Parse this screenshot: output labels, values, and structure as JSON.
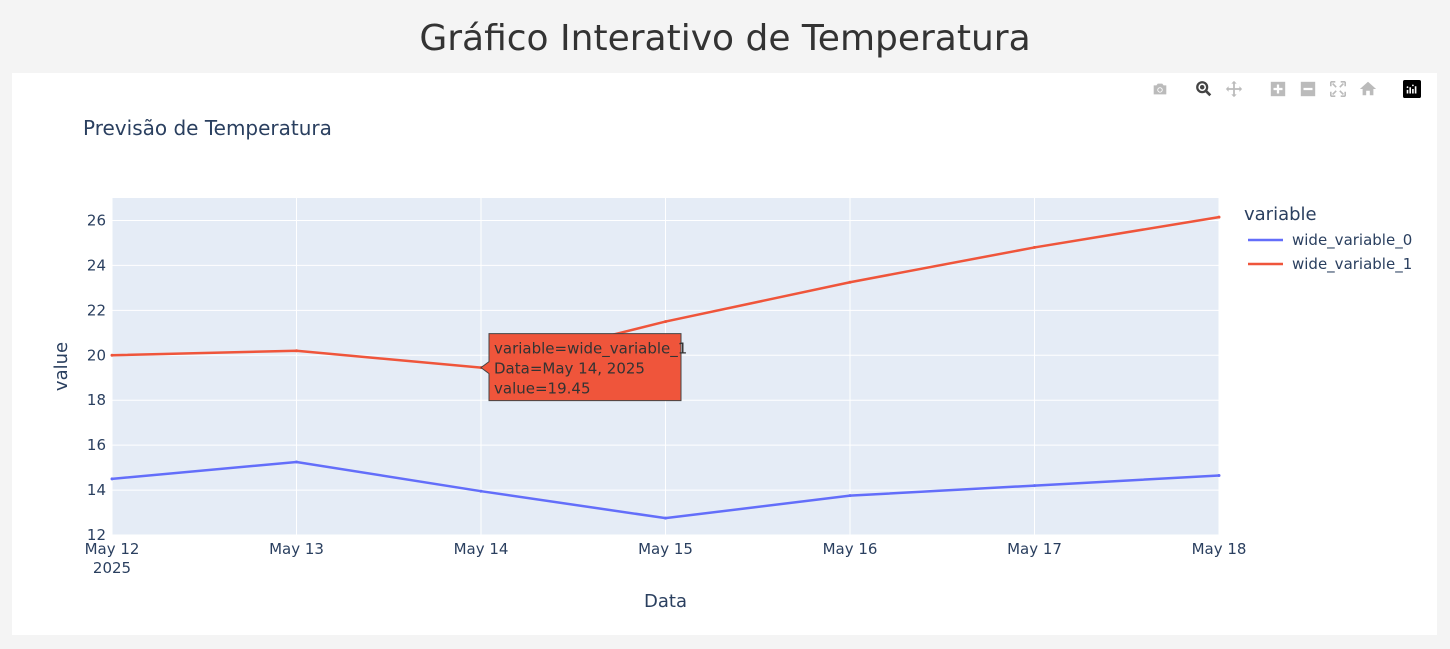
{
  "page": {
    "title": "Gráfico Interativo de Temperatura"
  },
  "modebar": [
    {
      "name": "camera-icon",
      "label": "Download plot as png"
    },
    {
      "name": "zoom-icon",
      "label": "Zoom"
    },
    {
      "name": "pan-icon",
      "label": "Pan"
    },
    {
      "name": "zoom-in-icon",
      "label": "Zoom in"
    },
    {
      "name": "zoom-out-icon",
      "label": "Zoom out"
    },
    {
      "name": "autoscale-icon",
      "label": "Autoscale"
    },
    {
      "name": "reset-axes-icon",
      "label": "Reset axes"
    },
    {
      "name": "plotly-logo-icon",
      "label": "Produced with Plotly"
    }
  ],
  "colors": {
    "series0": "#636efa",
    "series1": "#ef553b",
    "plot_bg": "#e5ecf6",
    "text": "#2a3f5f"
  },
  "chart_data": {
    "type": "line",
    "title": "Previsão de Temperatura",
    "xlabel": "Data",
    "ylabel": "value",
    "legend_title": "variable",
    "legend_placement": "right",
    "grid": true,
    "x": [
      "2025-05-12",
      "2025-05-13",
      "2025-05-14",
      "2025-05-15",
      "2025-05-16",
      "2025-05-17",
      "2025-05-18"
    ],
    "x_tick_labels": [
      "May 12",
      "May 13",
      "May 14",
      "May 15",
      "May 16",
      "May 17",
      "May 18"
    ],
    "x_tick_sublabel": "2025",
    "ylim": [
      12,
      27
    ],
    "y_ticks": [
      12,
      14,
      16,
      18,
      20,
      22,
      24,
      26
    ],
    "series": [
      {
        "name": "wide_variable_0",
        "values": [
          14.5,
          15.25,
          13.95,
          12.75,
          13.75,
          14.2,
          14.65
        ]
      },
      {
        "name": "wide_variable_1",
        "values": [
          20.0,
          20.2,
          19.45,
          21.5,
          23.25,
          24.8,
          26.15
        ]
      }
    ],
    "hover": {
      "series_index": 1,
      "point_index": 2,
      "lines": [
        "variable=wide_variable_1",
        "Data=May 14, 2025",
        "value=19.45"
      ]
    }
  }
}
